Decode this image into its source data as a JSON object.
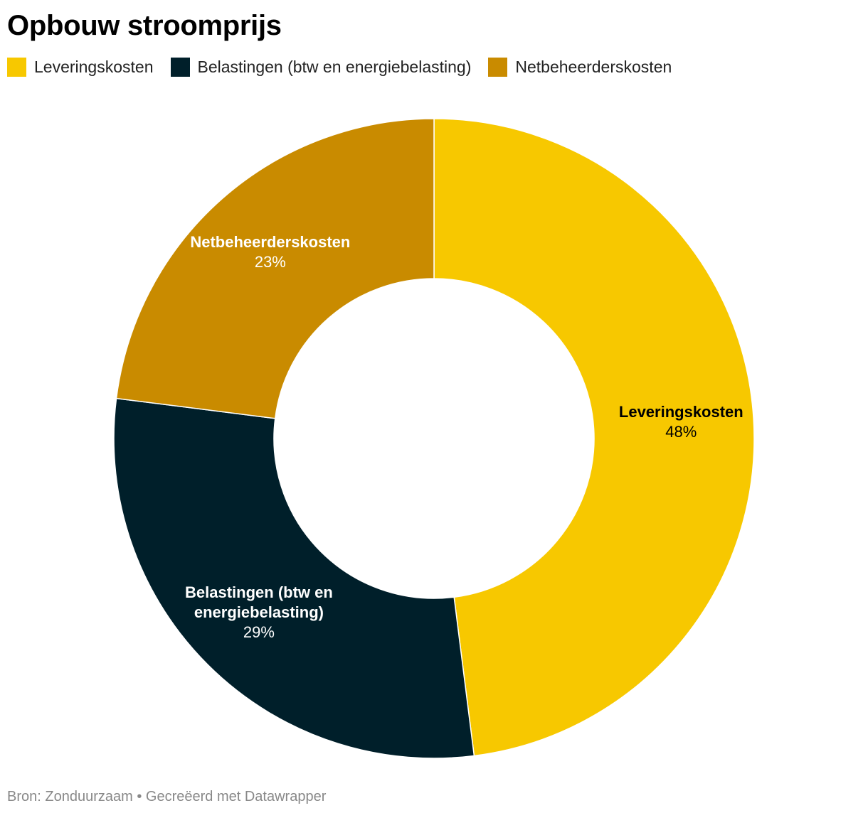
{
  "title": "Opbouw stroomprijs",
  "footer": {
    "source_label": "Bron:",
    "source": "Zonduurzaam",
    "separator": "•",
    "created_with": "Gecreëerd met Datawrapper"
  },
  "chart_data": {
    "type": "pie",
    "variant": "donut",
    "title": "Opbouw stroomprijs",
    "unit": "%",
    "legend_position": "top-left",
    "slices": [
      {
        "name": "Leveringskosten",
        "label_lines": [
          "Leveringskosten"
        ],
        "value": 48,
        "value_label": "48%",
        "color": "#f7c800",
        "label_color": "#000000"
      },
      {
        "name": "Belastingen (btw en energiebelasting)",
        "label_lines": [
          "Belastingen (btw en",
          "energiebelasting)"
        ],
        "value": 29,
        "value_label": "29%",
        "color": "#001f2a",
        "label_color": "#ffffff"
      },
      {
        "name": "Netbeheerderskosten",
        "label_lines": [
          "Netbeheerderskosten"
        ],
        "value": 23,
        "value_label": "23%",
        "color": "#c98b00",
        "label_color": "#ffffff"
      }
    ]
  }
}
